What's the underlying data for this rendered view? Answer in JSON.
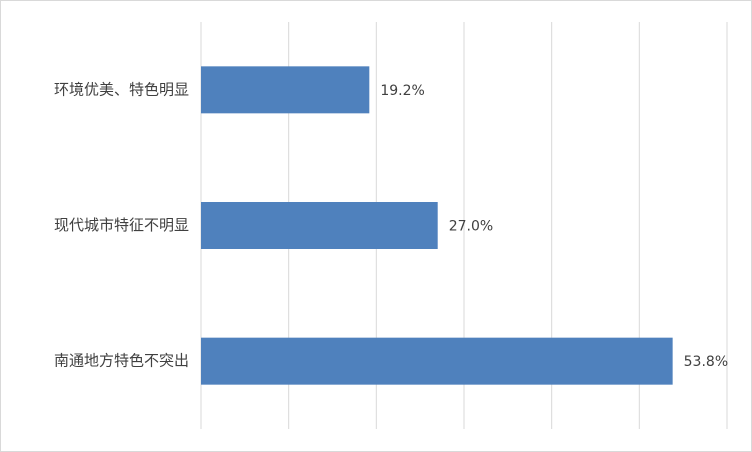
{
  "chart_data": {
    "type": "bar",
    "orientation": "horizontal",
    "categories": [
      "环境优美、特色明显",
      "现代城市特征不明显",
      "南通地方特色不突出"
    ],
    "values": [
      19.2,
      27.0,
      53.8
    ],
    "value_labels": [
      "19.2%",
      "27.0%",
      "53.8%"
    ],
    "color": "#4f81bd",
    "xlim": [
      0,
      60
    ],
    "xticks": [
      0,
      10,
      20,
      30,
      40,
      50,
      60
    ],
    "grid": true
  }
}
